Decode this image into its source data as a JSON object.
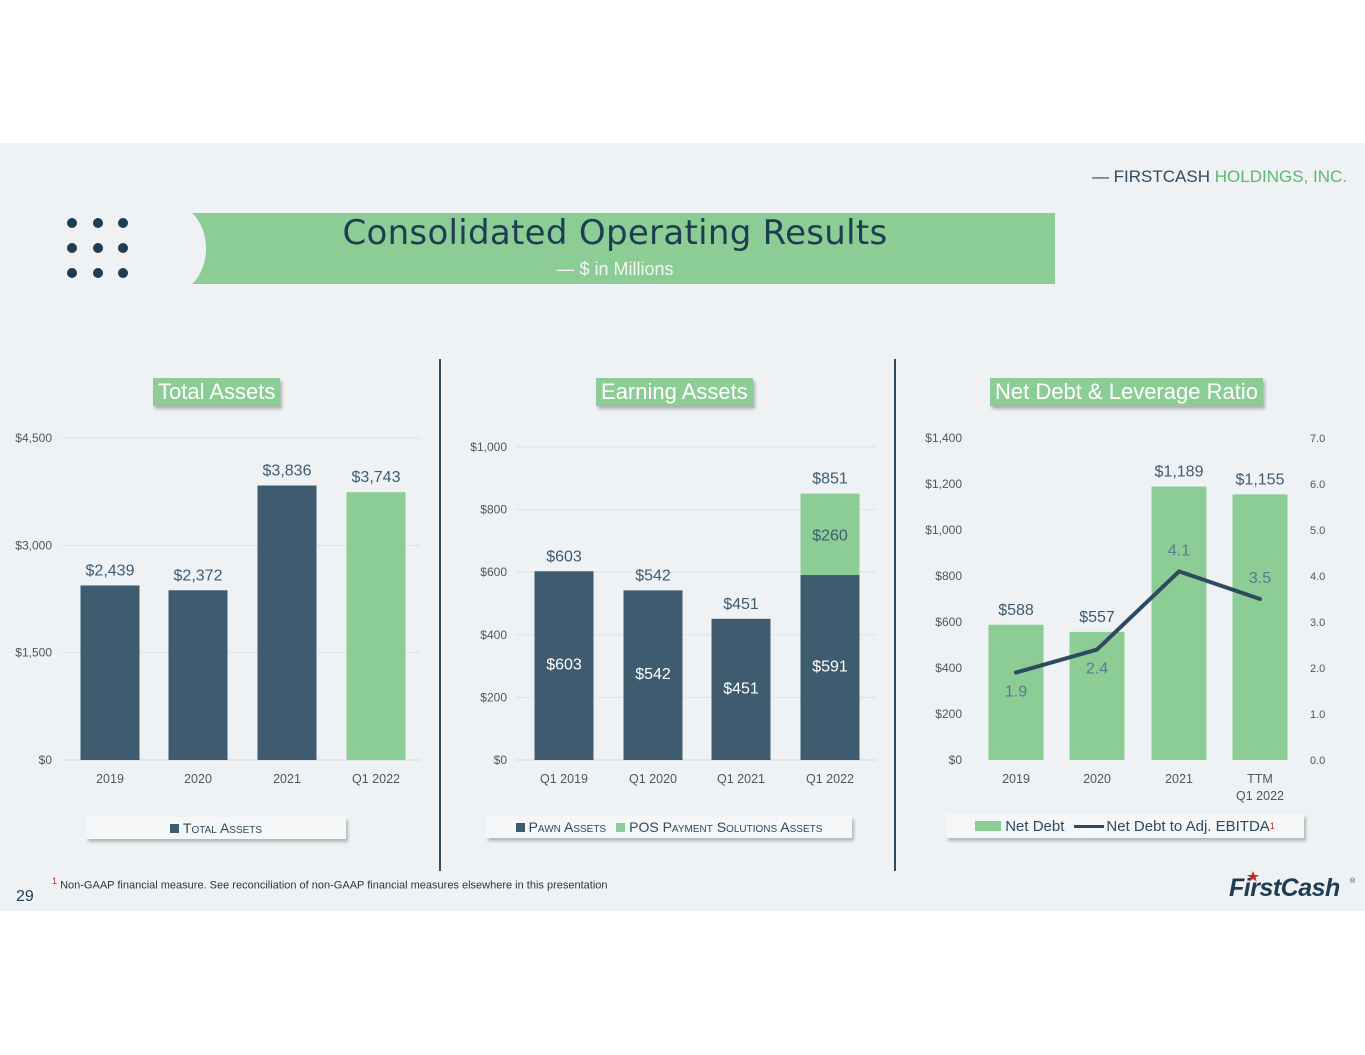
{
  "company": {
    "name_dark": "— FIRSTCASH",
    "name_green": "HOLDINGS, INC."
  },
  "header": {
    "title": "Consolidated Operating Results",
    "subtitle": "— $ in Millions"
  },
  "colors": {
    "navy": "#3e5b70",
    "green": "#8ccd96",
    "dark_text": "#1e3d52",
    "line": "#2f4a5e"
  },
  "chart_data": [
    {
      "type": "bar",
      "title": "Total Assets",
      "categories": [
        "2019",
        "2020",
        "2021",
        "Q1 2022"
      ],
      "series": [
        {
          "name": "Total Assets",
          "values": [
            2439,
            2372,
            3836,
            3743
          ]
        }
      ],
      "value_labels": [
        "$2,439",
        "$2,372",
        "$3,836",
        "$3,743"
      ],
      "bar_colors": [
        "#3e5b70",
        "#3e5b70",
        "#3e5b70",
        "#8ccd96"
      ],
      "yticks": [
        "$0",
        "$1,500",
        "$3,000",
        "$4,500"
      ],
      "ylim": [
        0,
        4500
      ],
      "legend": [
        "Total Assets"
      ],
      "grid": true
    },
    {
      "type": "bar",
      "stacked": true,
      "title": "Earning Assets",
      "categories": [
        "Q1 2019",
        "Q1 2020",
        "Q1 2021",
        "Q1 2022"
      ],
      "series": [
        {
          "name": "Pawn Assets",
          "values": [
            603,
            542,
            451,
            591
          ],
          "labels": [
            "$603",
            "$542",
            "$451",
            "$591"
          ]
        },
        {
          "name": "POS Payment Solutions Assets",
          "values": [
            0,
            0,
            0,
            260
          ],
          "labels": [
            "",
            "",
            "",
            "$260"
          ]
        }
      ],
      "total_labels": [
        "$603",
        "$542",
        "$451",
        "$851"
      ],
      "totals": [
        603,
        542,
        451,
        851
      ],
      "yticks": [
        "$0",
        "$200",
        "$400",
        "$600",
        "$800",
        "$1,000"
      ],
      "ylim": [
        0,
        1000
      ],
      "legend": [
        "Pawn Assets",
        "POS Payment Solutions Assets"
      ],
      "grid": true
    },
    {
      "type": "bar",
      "title": "Net Debt & Leverage Ratio",
      "categories": [
        "2019",
        "2020",
        "2021",
        "TTM\nQ1 2022"
      ],
      "series": [
        {
          "name": "Net Debt",
          "type": "bar",
          "values": [
            588,
            557,
            1189,
            1155
          ],
          "labels": [
            "$588",
            "$557",
            "$1,189",
            "$1,155"
          ]
        },
        {
          "name": "Net Debt to Adj. EBITDA",
          "type": "line",
          "axis": "right",
          "values": [
            1.9,
            2.4,
            4.1,
            3.5
          ],
          "labels": [
            "1.9",
            "2.4",
            "4.1",
            "3.5"
          ]
        }
      ],
      "yticks": [
        "$0",
        "$200",
        "$400",
        "$600",
        "$800",
        "$1,000",
        "$1,200",
        "$1,400"
      ],
      "ylim": [
        0,
        1400
      ],
      "y2ticks": [
        "0.0",
        "1.0",
        "2.0",
        "3.0",
        "4.0",
        "5.0",
        "6.0",
        "7.0"
      ],
      "y2lim": [
        0,
        7
      ],
      "legend": [
        "Net Debt",
        "Net Debt to Adj. EBITDA"
      ],
      "legend_footnote": "1",
      "grid": false
    }
  ],
  "footnote": {
    "marker": "1",
    "text": "Non-GAAP financial measure. See reconciliation of non-GAAP financial measures elsewhere in this presentation"
  },
  "page_number": "29",
  "logo_text": "FirstCash"
}
